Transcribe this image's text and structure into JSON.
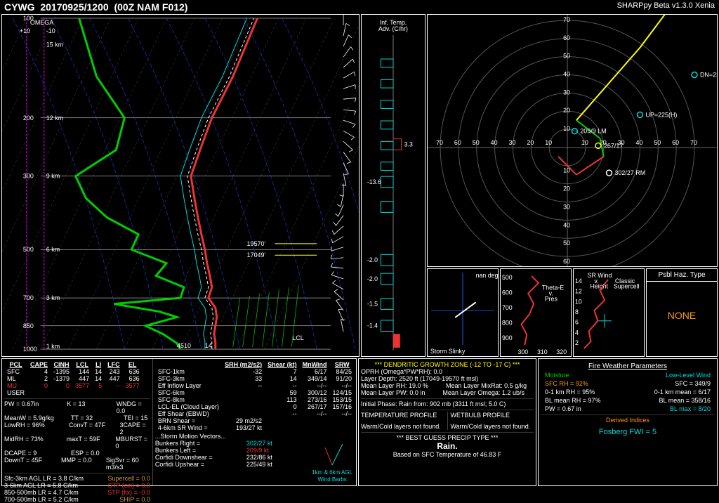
{
  "header": {
    "station": "CYWG",
    "time": "20170925/1200",
    "model": "(00Z  NAM  F012)",
    "version": "SHARPpy Beta v1.3.0 Xenia"
  },
  "skewt": {
    "plevels": [
      1000,
      850,
      700,
      500,
      300,
      200,
      100
    ],
    "omega_label": "OMEGA",
    "omega_ticks": [
      "+10",
      "",
      "-10"
    ],
    "height_labels": [
      {
        "p": 980,
        "t": "1 km",
        "c": "#e33"
      },
      {
        "p": 700,
        "t": "3 km",
        "c": "#e33"
      },
      {
        "p": 500,
        "t": "6 km",
        "c": "#e33"
      },
      {
        "p": 300,
        "t": "9 km",
        "c": "#e33"
      },
      {
        "p": 200,
        "t": "12 km",
        "c": "#e33"
      },
      {
        "p": 120,
        "t": "15 km",
        "c": "#e33"
      }
    ],
    "level_markers": [
      {
        "text": "19570'",
        "c": "#ff0",
        "p": 480
      },
      {
        "text": "17049'",
        "c": "#ff0",
        "p": 520
      }
    ],
    "lcl_label": "LCL",
    "sfc_wb": "45",
    "adv_header1": "Inf. Temp.",
    "adv_header2": "Adv. (C/hr)",
    "adv_values": [
      {
        "v": "3.3",
        "c": "#e33",
        "p": 0.35
      },
      {
        "v": "-13.6",
        "c": "#0dd",
        "p": 0.47
      },
      {
        "v": "",
        "c": "#0dd",
        "p": 0.55
      },
      {
        "v": "-2.0",
        "c": "#0dd",
        "p": 0.72
      },
      {
        "v": "-2.0",
        "c": "#0dd",
        "p": 0.78
      },
      {
        "v": "-1.5",
        "c": "#0dd",
        "p": 0.86
      },
      {
        "v": "-1.4",
        "c": "#0dd",
        "p": 0.93
      }
    ]
  },
  "hodo": {
    "rings": [
      10,
      20,
      30,
      40,
      50,
      60,
      70
    ],
    "markers": [
      {
        "label": "209/9 LM",
        "c": "#0dd",
        "x": 4,
        "y": 9
      },
      {
        "label": "267/17",
        "c": "#ff0",
        "x": 17,
        "y": 1
      },
      {
        "label": "302/27 RM",
        "c": "#fff",
        "x": 23,
        "y": -14
      },
      {
        "label": "UP=225(H)",
        "c": "#0dd",
        "x": 40,
        "y": 18
      },
      {
        "label": "DN=23",
        "c": "#0dd",
        "x": 70,
        "y": 40
      }
    ]
  },
  "slinky": {
    "label": "Storm Slinky",
    "deg": "nan deg"
  },
  "thetae": {
    "label": "Theta-E\nv.\nPres",
    "xticks": [
      "300",
      "310",
      "320"
    ],
    "yticks": [
      "500",
      "600",
      "700",
      "800",
      "900"
    ]
  },
  "srwind": {
    "label": "SR Wind\nv.\nHeight",
    "side": "Classic\nSupercell",
    "yticks": [
      "2",
      "4",
      "6",
      "8",
      "10",
      "12",
      "14"
    ]
  },
  "haz": {
    "title": "Psbl Haz. Type",
    "value": "NONE"
  },
  "thermo": {
    "pcl": {
      "headers": [
        "PCL",
        "CAPE",
        "CINH",
        "LCL",
        "LI",
        "LFC",
        "EL"
      ],
      "rows": [
        {
          "c": "#fff",
          "cells": [
            "SFC",
            "4",
            "-1395",
            "144",
            "14",
            "243",
            "636"
          ]
        },
        {
          "c": "#fff",
          "cells": [
            "ML",
            "2",
            "-1379",
            "447",
            "14",
            "447",
            "636"
          ]
        },
        {
          "c": "#e33",
          "cells": [
            "MU",
            "0",
            "0",
            "3577",
            "5",
            "--",
            "3577"
          ]
        },
        {
          "c": "#fff",
          "cells": [
            "USER",
            "",
            "",
            "",
            "",
            "",
            ""
          ]
        }
      ]
    },
    "left_stats": [
      [
        "PW = 0.67in",
        "K = 13",
        "WNDG = 0.0"
      ],
      [
        "MeanW = 5.9g/kg",
        "TT = 32",
        "TEI = 15"
      ],
      [
        "LowRH = 96%",
        "ConvT = 47F",
        "3CAPE = 2"
      ],
      [
        "MidRH = 73%",
        "maxT = 59F",
        "MBURST = 0"
      ],
      [
        "DCAPE = 9",
        "ESP = 0.0",
        ""
      ],
      [
        "DownT = 45F",
        "MMP = 0.0",
        "SigSvr = 60 m3/s3"
      ]
    ],
    "lapse": [
      "Sfc-3km AGL LR = 3.8 C/km",
      "3-6km AGL LR = 5.8 C/km",
      "850-500mb LR = 4.7 C/km",
      "700-500mb LR = 5.2 C/km"
    ],
    "composites": [
      {
        "t": "Supercell = 0.0",
        "c": "#cc9933"
      },
      {
        "t": "STP (cin) = 0.0",
        "c": "#e33"
      },
      {
        "t": "STP (fix) = -0.0",
        "c": "#e33"
      },
      {
        "t": "SHIP = 0.0",
        "c": "#cc9933"
      }
    ],
    "kin": {
      "headers": [
        "",
        "SRH (m2/s2)",
        "Shear   (kt)",
        "MnWind",
        "SRW"
      ],
      "rows": [
        [
          "SFC-1km",
          "-32",
          "7",
          "6/17",
          "84/25"
        ],
        [
          "SFC-3km",
          "33",
          "14",
          "349/14",
          "91/20"
        ],
        [
          "Eff Inflow Layer",
          "--",
          "--",
          "--/--",
          "--/--"
        ],
        [
          "",
          "",
          "",
          "",
          ""
        ],
        [
          "SFC-6km",
          "",
          "59",
          "300/12",
          "124/15"
        ],
        [
          "SFC-8km",
          "",
          "113",
          "273/16",
          "153/15"
        ],
        [
          "LCL-EL (Cloud Layer)",
          "",
          "0",
          "267/17",
          "157/16"
        ],
        [
          "Eff Shear (EBWD)",
          "",
          "--",
          "--/--",
          "--/--"
        ],
        [
          "",
          "",
          "",
          "",
          ""
        ],
        [
          "BRN Shear =",
          "29 m2/s2",
          "",
          "",
          ""
        ],
        [
          "4-6km SR Wind =",
          "193/27 kt",
          "",
          "",
          ""
        ]
      ],
      "storm": [
        {
          "l": "...Storm Motion Vectors...",
          "v": "",
          "c": "#fff"
        },
        {
          "l": "Bunkers Right =",
          "v": "302/27 kt",
          "c": "#0dd"
        },
        {
          "l": "Bunkers Left =",
          "v": "209/9 kt",
          "c": "#e33"
        },
        {
          "l": "Corfidi Downshear =",
          "v": "232/86 kt",
          "c": "#fff"
        },
        {
          "l": "Corfidi Upshear =",
          "v": "225/49 kt",
          "c": "#fff"
        }
      ],
      "barbs_label": "1km & 6km AGL\nWind Barbs"
    }
  },
  "dend": {
    "title": "*** DENDRITIC GROWTH ZONE (-12 TO -17 C) ***",
    "lines": [
      "OPRH (Omega*PW*RH): 0.0",
      "Layer Depth: 2520 ft (17049-19570 ft msl)",
      "Mean Layer RH: 19.0 %          Mean Layer MixRat: 0.5 g/kg",
      "Mean Layer PW: 0.0 in          Mean Layer Omega: 1.2 ub/s"
    ],
    "initial": "Initial Phase: Rain from: 902 mb (3311 ft msl; 5.0 C)",
    "tprof": "TEMPERATURE PROFILE",
    "wprof": "WETBULB PROFILE",
    "nf1": "Warm/Cold layers not found.",
    "nf2": "Warm/Cold layers not found.",
    "best": "*** BEST GUESS PRECIP TYPE ***",
    "ptype": "Rain.",
    "based": "Based on SFC Temperature of 46.83 F"
  },
  "fire": {
    "title": "Fire Weather Parameters",
    "moist": "Moisture",
    "wind": "Low-Level Wind",
    "rows": [
      {
        "l": "SFC RH = 92%",
        "r": "SFC = 349/9",
        "lc": "#f90",
        "rc": "#fff"
      },
      {
        "l": "0-1 km RH = 95%",
        "r": "0-1 km mean = 6/17",
        "lc": "#fff",
        "rc": "#fff"
      },
      {
        "l": "BL mean RH = 97%",
        "r": "BL mean = 358/16",
        "lc": "#fff",
        "rc": "#fff"
      },
      {
        "l": "PW = 0.67 in",
        "r": "BL max = 8/20",
        "lc": "#fff",
        "rc": "#0dd"
      }
    ],
    "derived": "Derived Indices",
    "fwi": "Fosberg FWI = 5"
  }
}
